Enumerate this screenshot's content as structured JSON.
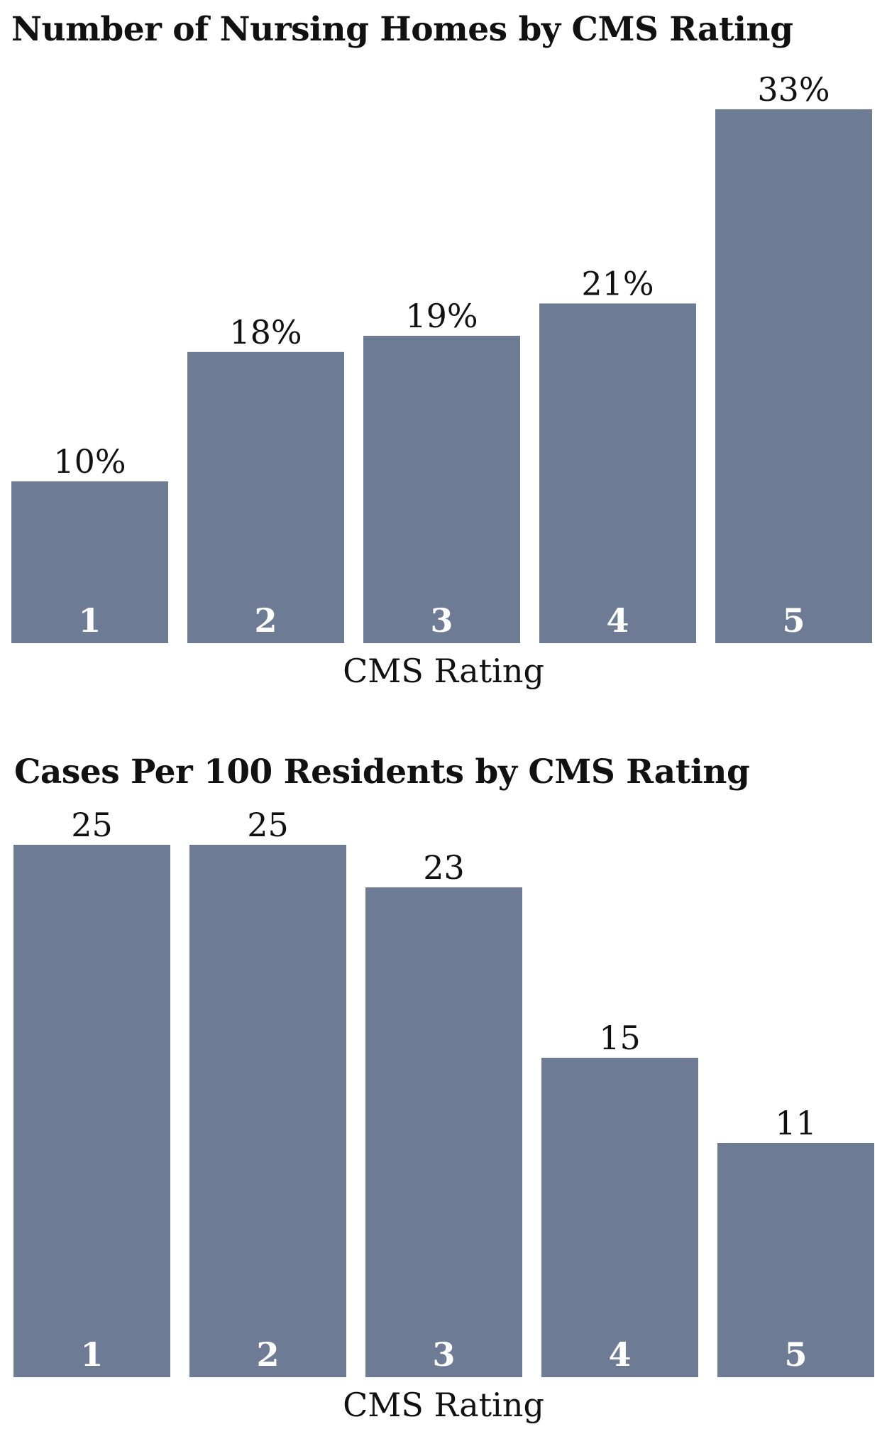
{
  "chart_data": [
    {
      "type": "bar",
      "title": "Number of Nursing Homes by CMS Rating",
      "xlabel": "CMS Rating",
      "ylabel": "",
      "categories": [
        "1",
        "2",
        "3",
        "4",
        "5"
      ],
      "values": [
        10,
        18,
        19,
        21,
        33
      ],
      "value_labels": [
        "10%",
        "18%",
        "19%",
        "21%",
        "33%"
      ],
      "ylim": [
        0,
        33
      ],
      "grid": false,
      "legend": "none",
      "bar_color": "#6d7c94"
    },
    {
      "type": "bar",
      "title": "Cases Per 100 Residents by CMS Rating",
      "xlabel": "CMS Rating",
      "ylabel": "",
      "categories": [
        "1",
        "2",
        "3",
        "4",
        "5"
      ],
      "values": [
        25,
        25,
        23,
        15,
        11
      ],
      "value_labels": [
        "25",
        "25",
        "23",
        "15",
        "11"
      ],
      "ylim": [
        0,
        25
      ],
      "grid": false,
      "legend": "none",
      "bar_color": "#6d7c94"
    }
  ]
}
